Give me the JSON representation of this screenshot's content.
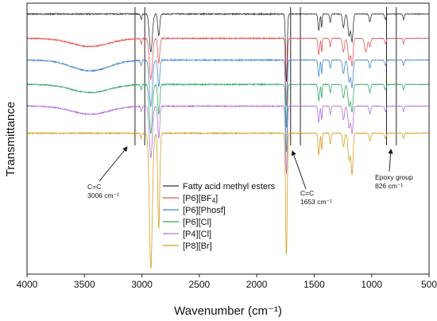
{
  "chart_data": {
    "type": "line",
    "title": "",
    "xlabel": "Wavenumber (cm⁻¹)",
    "ylabel": "Transmittance",
    "xlim": [
      4000,
      500
    ],
    "x_reversed": true,
    "y_ticks_shown": false,
    "grid": false,
    "legend_position": "center",
    "x_ticks": [
      "4000",
      "3500",
      "3000",
      "2500",
      "2000",
      "1500",
      "1000",
      "500"
    ],
    "series": [
      {
        "name": "Fatty acid methyl esters",
        "name_sub": "",
        "name_suffix": "",
        "color": "#333333",
        "baseline": 0.04,
        "oh_band": 0.0,
        "peaks": [
          [
            3006,
            0.02,
            8
          ],
          [
            2922,
            0.14,
            18
          ],
          [
            2853,
            0.08,
            12
          ],
          [
            1742,
            0.25,
            10
          ],
          [
            1460,
            0.06,
            10
          ],
          [
            1435,
            0.05,
            6
          ],
          [
            1360,
            0.03,
            8
          ],
          [
            1245,
            0.05,
            12
          ],
          [
            1196,
            0.08,
            14
          ],
          [
            1170,
            0.1,
            12
          ],
          [
            1015,
            0.03,
            10
          ],
          [
            880,
            0.02,
            10
          ],
          [
            722,
            0.02,
            8
          ]
        ]
      },
      {
        "name": "[P6][BF",
        "name_sub": "4",
        "name_suffix": "]",
        "color": "#e05555",
        "baseline": 0.13,
        "oh_band": 0.03,
        "peaks": [
          [
            3006,
            0.02,
            8
          ],
          [
            2922,
            0.15,
            18
          ],
          [
            2853,
            0.09,
            12
          ],
          [
            1742,
            0.25,
            10
          ],
          [
            1460,
            0.06,
            10
          ],
          [
            1435,
            0.05,
            6
          ],
          [
            1360,
            0.03,
            8
          ],
          [
            1245,
            0.05,
            12
          ],
          [
            1196,
            0.08,
            14
          ],
          [
            1170,
            0.1,
            12
          ],
          [
            1050,
            0.05,
            16
          ],
          [
            1015,
            0.03,
            10
          ],
          [
            880,
            0.02,
            10
          ],
          [
            722,
            0.02,
            8
          ]
        ]
      },
      {
        "name": "[P6][Phosf]",
        "name_sub": "",
        "name_suffix": "",
        "color": "#4488cc",
        "baseline": 0.21,
        "oh_band": 0.04,
        "peaks": [
          [
            3006,
            0.02,
            8
          ],
          [
            2922,
            0.17,
            18
          ],
          [
            2853,
            0.1,
            12
          ],
          [
            1742,
            0.25,
            10
          ],
          [
            1460,
            0.06,
            10
          ],
          [
            1435,
            0.05,
            6
          ],
          [
            1360,
            0.03,
            8
          ],
          [
            1245,
            0.05,
            12
          ],
          [
            1196,
            0.08,
            14
          ],
          [
            1170,
            0.1,
            12
          ],
          [
            1015,
            0.03,
            10
          ],
          [
            880,
            0.02,
            10
          ],
          [
            722,
            0.02,
            8
          ]
        ]
      },
      {
        "name": "[P6][Cl]",
        "name_sub": "",
        "name_suffix": "",
        "color": "#33a866",
        "baseline": 0.3,
        "oh_band": 0.03,
        "peaks": [
          [
            3006,
            0.02,
            8
          ],
          [
            2922,
            0.18,
            18
          ],
          [
            2853,
            0.11,
            12
          ],
          [
            1742,
            0.25,
            10
          ],
          [
            1460,
            0.06,
            10
          ],
          [
            1435,
            0.05,
            6
          ],
          [
            1360,
            0.03,
            8
          ],
          [
            1245,
            0.05,
            12
          ],
          [
            1196,
            0.08,
            14
          ],
          [
            1170,
            0.1,
            12
          ],
          [
            1015,
            0.03,
            10
          ],
          [
            880,
            0.02,
            10
          ],
          [
            722,
            0.02,
            8
          ]
        ]
      },
      {
        "name": "[P4][Cl]",
        "name_sub": "",
        "name_suffix": "",
        "color": "#b070dd",
        "baseline": 0.38,
        "oh_band": 0.03,
        "peaks": [
          [
            3006,
            0.02,
            8
          ],
          [
            2922,
            0.19,
            18
          ],
          [
            2853,
            0.12,
            12
          ],
          [
            1742,
            0.25,
            10
          ],
          [
            1460,
            0.06,
            10
          ],
          [
            1435,
            0.05,
            6
          ],
          [
            1360,
            0.03,
            8
          ],
          [
            1245,
            0.05,
            12
          ],
          [
            1196,
            0.08,
            14
          ],
          [
            1170,
            0.1,
            12
          ],
          [
            1015,
            0.03,
            10
          ],
          [
            880,
            0.02,
            10
          ],
          [
            722,
            0.02,
            8
          ]
        ]
      },
      {
        "name": "[P8][Br]",
        "name_sub": "",
        "name_suffix": "",
        "color": "#d4a020",
        "baseline": 0.48,
        "oh_band": 0.0,
        "peaks": [
          [
            3006,
            0.02,
            8
          ],
          [
            2922,
            0.5,
            18
          ],
          [
            2853,
            0.35,
            12
          ],
          [
            1742,
            0.45,
            10
          ],
          [
            1460,
            0.08,
            10
          ],
          [
            1435,
            0.06,
            6
          ],
          [
            1360,
            0.04,
            8
          ],
          [
            1245,
            0.05,
            12
          ],
          [
            1196,
            0.1,
            14
          ],
          [
            1170,
            0.15,
            12
          ],
          [
            1015,
            0.03,
            10
          ],
          [
            880,
            0.02,
            10
          ],
          [
            722,
            0.02,
            8
          ]
        ]
      }
    ],
    "reference_lines": [
      3060,
      2975,
      1705,
      1620,
      870,
      785
    ],
    "annotations": [
      {
        "id": "cc1",
        "lines": [
          "C=C",
          "3006 cm⁻¹"
        ],
        "arrow_target_x": 3060
      },
      {
        "id": "cc2",
        "lines": [
          "C=C",
          "1653 cm⁻¹"
        ],
        "arrow_target_x": 1705
      },
      {
        "id": "epoxy",
        "lines": [
          "Epoxy group",
          "826 cm⁻¹"
        ],
        "arrow_target_x": 785
      }
    ]
  }
}
